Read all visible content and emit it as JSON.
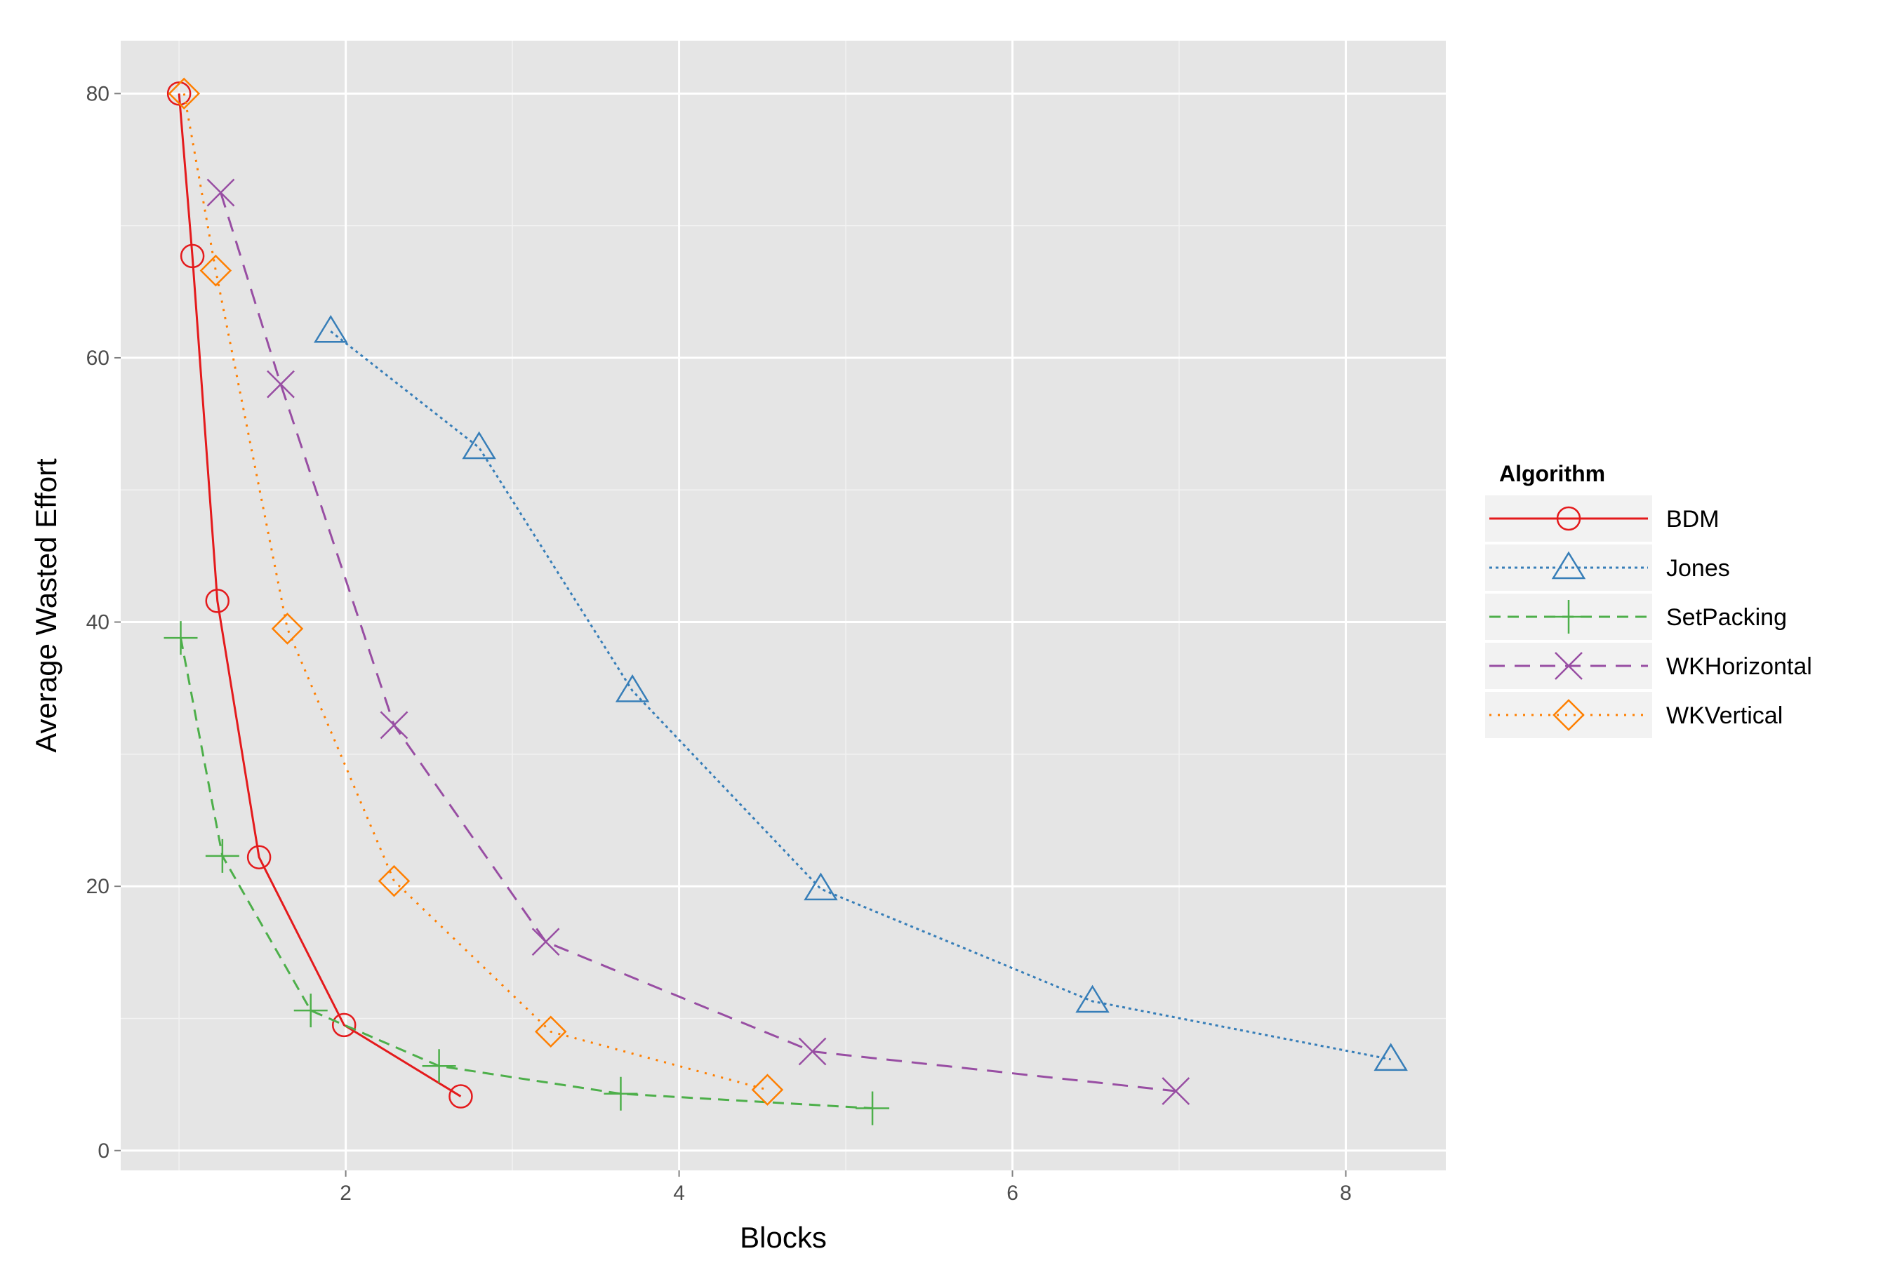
{
  "chart_data": {
    "type": "line",
    "xlabel": "Blocks",
    "ylabel": "Average Wasted Effort",
    "xlim": [
      0.65,
      8.6
    ],
    "ylim": [
      -1.5,
      84
    ],
    "x_ticks": [
      2,
      4,
      6,
      8
    ],
    "y_ticks": [
      0,
      20,
      40,
      60,
      80
    ],
    "x_minor": [
      1,
      3,
      5,
      7
    ],
    "y_minor": [
      10,
      30,
      50,
      70
    ],
    "grid": true,
    "legend": {
      "title": "Algorithm",
      "position": "right"
    },
    "series": [
      {
        "name": "BDM",
        "color": "#e41a1c",
        "linestyle": "solid",
        "marker": "circle",
        "x": [
          1.0,
          1.08,
          1.23,
          1.48,
          1.99,
          2.69
        ],
        "y": [
          80.0,
          67.7,
          41.6,
          22.2,
          9.5,
          4.1
        ]
      },
      {
        "name": "Jones",
        "color": "#377eb8",
        "linestyle": "dotted-fine",
        "marker": "triangle",
        "x": [
          1.91,
          2.8,
          3.72,
          4.85,
          6.48,
          8.27
        ],
        "y": [
          62.0,
          53.2,
          34.8,
          19.8,
          11.3,
          6.9
        ]
      },
      {
        "name": "SetPacking",
        "color": "#4daf4a",
        "linestyle": "dashed",
        "marker": "plus",
        "x": [
          1.01,
          1.26,
          1.79,
          2.56,
          3.65,
          5.16
        ],
        "y": [
          38.8,
          22.3,
          10.6,
          6.4,
          4.3,
          3.2
        ]
      },
      {
        "name": "WKHorizontal",
        "color": "#984ea3",
        "linestyle": "longdash",
        "marker": "cross",
        "x": [
          1.25,
          1.61,
          2.29,
          3.2,
          4.8,
          6.98
        ],
        "y": [
          72.5,
          58.0,
          32.2,
          15.8,
          7.5,
          4.5
        ]
      },
      {
        "name": "WKVertical",
        "color": "#ff7f00",
        "linestyle": "dotted",
        "marker": "diamond",
        "x": [
          1.03,
          1.22,
          1.65,
          2.29,
          3.23,
          4.53
        ],
        "y": [
          80.0,
          66.6,
          39.5,
          20.4,
          9.0,
          4.6
        ]
      }
    ]
  }
}
